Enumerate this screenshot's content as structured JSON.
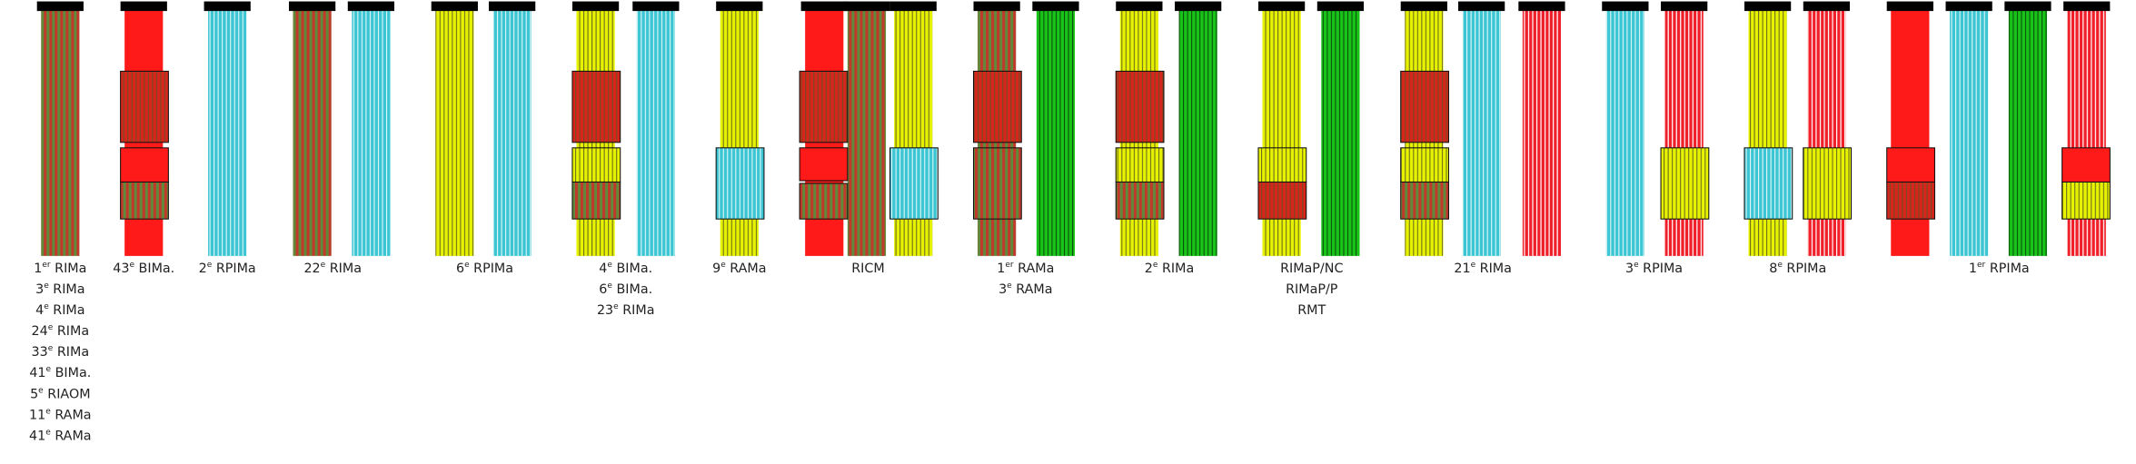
{
  "groups": [
    {
      "labels": [
        {
          "n": "1",
          "sup": "er",
          "rest": "RIMa"
        },
        {
          "n": "3",
          "sup": "e",
          "rest": "RIMa"
        },
        {
          "n": "4",
          "sup": "e",
          "rest": "RIMa"
        },
        {
          "n": "24",
          "sup": "e",
          "rest": "RIMa"
        },
        {
          "n": "33",
          "sup": "e",
          "rest": "RIMa"
        },
        {
          "n": "41",
          "sup": "e",
          "rest": "BIMa."
        },
        {
          "n": "5",
          "sup": "e",
          "rest": "RIAOM"
        },
        {
          "n": "11",
          "sup": "e",
          "rest": "RAMa"
        },
        {
          "n": "41",
          "sup": "e",
          "rest": "RAMa"
        }
      ]
    },
    {
      "labels": [
        {
          "n": "43",
          "sup": "e",
          "rest": "BIMa."
        }
      ]
    },
    {
      "labels": [
        {
          "n": "2",
          "sup": "e",
          "rest": "RPIMa"
        }
      ]
    },
    {
      "labels": [
        {
          "n": "22",
          "sup": "e",
          "rest": "RIMa"
        }
      ]
    },
    {
      "labels": [
        {
          "n": "6",
          "sup": "e",
          "rest": "RPIMa"
        }
      ]
    },
    {
      "labels": [
        {
          "n": "4",
          "sup": "e",
          "rest": "BIMa."
        },
        {
          "n": "6",
          "sup": "e",
          "rest": "BIMa."
        },
        {
          "n": "23",
          "sup": "e",
          "rest": "RIMa"
        }
      ]
    },
    {
      "labels": [
        {
          "n": "9",
          "sup": "e",
          "rest": "RAMa"
        }
      ]
    },
    {
      "labels": [
        "RICM"
      ]
    },
    {
      "labels": [
        {
          "n": "1",
          "sup": "er",
          "rest": "RAMa"
        },
        {
          "n": "3",
          "sup": "e",
          "rest": "RAMa"
        }
      ]
    },
    {
      "labels": [
        {
          "n": "2",
          "sup": "e",
          "rest": "RIMa"
        }
      ]
    },
    {
      "labels": [
        "RIMaP/NC",
        "RIMaP/P",
        "RMT"
      ]
    },
    {
      "labels": [
        {
          "n": "21",
          "sup": "e",
          "rest": "RIMa"
        }
      ]
    },
    {
      "labels": [
        {
          "n": "3",
          "sup": "e",
          "rest": "RPIMa"
        }
      ]
    },
    {
      "labels": [
        {
          "n": "8",
          "sup": "e",
          "rest": "RPIMa"
        }
      ]
    },
    {
      "labels": [
        {
          "n": "1",
          "sup": "er",
          "rest": "RPIMa"
        }
      ]
    }
  ]
}
